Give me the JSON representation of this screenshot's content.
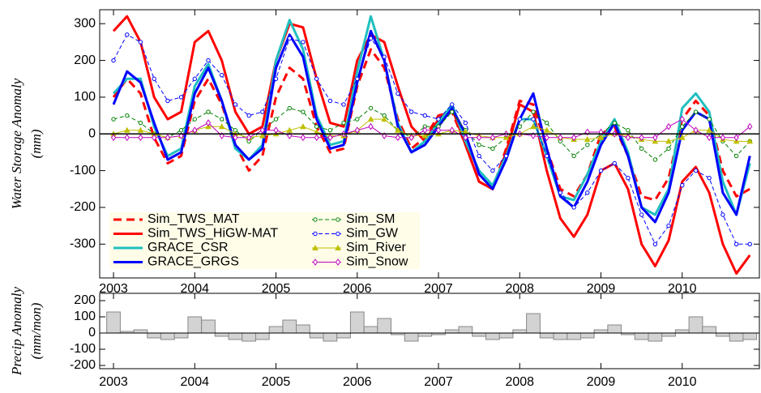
{
  "chart_data": [
    {
      "type": "line",
      "y_label": [
        "Water Storage Anomaly",
        "(mm)"
      ],
      "x": [
        2003,
        2003.167,
        2003.333,
        2003.5,
        2003.667,
        2003.833,
        2004,
        2004.167,
        2004.333,
        2004.5,
        2004.667,
        2004.833,
        2005,
        2005.167,
        2005.333,
        2005.5,
        2005.667,
        2005.833,
        2006,
        2006.167,
        2006.333,
        2006.5,
        2006.667,
        2006.833,
        2007,
        2007.167,
        2007.333,
        2007.5,
        2007.667,
        2007.833,
        2008,
        2008.167,
        2008.333,
        2008.5,
        2008.667,
        2008.833,
        2009,
        2009.167,
        2009.333,
        2009.5,
        2009.667,
        2009.833,
        2010,
        2010.167,
        2010.333,
        2010.5,
        2010.667,
        2010.833
      ],
      "xlim": [
        2002.83,
        2010.95
      ],
      "xticks": [
        2003,
        2004,
        2005,
        2006,
        2007,
        2008,
        2009,
        2010
      ],
      "ylim": [
        -392,
        338
      ],
      "yticks": [
        -300,
        -200,
        -100,
        0,
        100,
        200,
        300
      ],
      "hline": 0,
      "legend": "lower left",
      "series": [
        {
          "name": "Sim_TWS_MAT",
          "color": "#ff0000",
          "style": "dashed",
          "width": 3,
          "values": [
            100,
            150,
            110,
            -10,
            -80,
            -60,
            90,
            150,
            80,
            -30,
            -100,
            -60,
            100,
            180,
            150,
            20,
            -50,
            -40,
            130,
            230,
            180,
            40,
            -40,
            -10,
            50,
            60,
            -30,
            -130,
            -150,
            -40,
            90,
            80,
            -40,
            -150,
            -170,
            -110,
            0,
            20,
            -60,
            -170,
            -180,
            -120,
            40,
            90,
            50,
            -100,
            -170,
            -150
          ]
        },
        {
          "name": "Sim_TWS_HiGW-MAT",
          "color": "#ff0000",
          "style": "solid",
          "width": 3,
          "values": [
            280,
            320,
            250,
            100,
            40,
            60,
            250,
            280,
            200,
            60,
            0,
            20,
            200,
            300,
            290,
            150,
            30,
            20,
            200,
            270,
            250,
            130,
            20,
            -20,
            40,
            70,
            -30,
            -130,
            -150,
            -50,
            80,
            60,
            -100,
            -230,
            -280,
            -220,
            -100,
            -80,
            -150,
            -300,
            -360,
            -290,
            -130,
            -90,
            -160,
            -300,
            -380,
            -330
          ]
        },
        {
          "name": "GRACE_CSR",
          "color": "#1fbfbf",
          "style": "solid",
          "width": 3,
          "values": [
            110,
            150,
            150,
            20,
            -60,
            -40,
            130,
            190,
            90,
            -40,
            -70,
            -30,
            200,
            310,
            230,
            50,
            -30,
            -20,
            170,
            320,
            200,
            30,
            -50,
            -20,
            30,
            80,
            -20,
            -100,
            -140,
            -60,
            40,
            40,
            -60,
            -170,
            -180,
            -110,
            -20,
            40,
            -50,
            -200,
            -220,
            -150,
            70,
            110,
            60,
            -130,
            -220,
            -80
          ]
        },
        {
          "name": "GRACE_GRGS",
          "color": "#0000ff",
          "style": "solid",
          "width": 3,
          "values": [
            80,
            170,
            140,
            30,
            -70,
            -50,
            110,
            180,
            90,
            -30,
            -70,
            -40,
            180,
            270,
            210,
            40,
            -40,
            -30,
            140,
            280,
            200,
            20,
            -50,
            -30,
            20,
            70,
            0,
            -110,
            -150,
            -70,
            40,
            110,
            -40,
            -170,
            -200,
            -130,
            -30,
            30,
            -60,
            -200,
            -240,
            -160,
            10,
            60,
            40,
            -160,
            -220,
            -60
          ]
        },
        {
          "name": "Sim_SM",
          "color": "#008000",
          "style": "dashed",
          "marker": "o",
          "width": 1,
          "values": [
            40,
            50,
            30,
            0,
            -10,
            10,
            40,
            60,
            40,
            10,
            -20,
            10,
            40,
            70,
            60,
            20,
            10,
            30,
            40,
            70,
            50,
            10,
            -10,
            20,
            20,
            60,
            10,
            -30,
            -40,
            -10,
            20,
            60,
            30,
            -20,
            -60,
            -30,
            0,
            30,
            10,
            -40,
            -70,
            -40,
            20,
            60,
            40,
            -20,
            -60,
            -20
          ]
        },
        {
          "name": "Sim_GW",
          "color": "#0000ff",
          "style": "dashed",
          "marker": "o",
          "width": 1,
          "values": [
            200,
            270,
            250,
            150,
            90,
            100,
            150,
            200,
            160,
            80,
            50,
            60,
            150,
            260,
            250,
            150,
            90,
            80,
            150,
            260,
            210,
            110,
            60,
            50,
            40,
            80,
            30,
            -60,
            -100,
            -60,
            40,
            40,
            -60,
            -160,
            -200,
            -160,
            -100,
            -80,
            -120,
            -220,
            -300,
            -250,
            -140,
            -100,
            -120,
            -220,
            -300,
            -300
          ]
        },
        {
          "name": "Sim_River",
          "color": "#bfbf00",
          "style": "solid",
          "marker": "^",
          "width": 1,
          "values": [
            0,
            10,
            10,
            0,
            -10,
            -5,
            10,
            20,
            20,
            0,
            -10,
            -5,
            0,
            10,
            20,
            5,
            -5,
            -5,
            10,
            40,
            40,
            10,
            -5,
            -5,
            0,
            10,
            5,
            -5,
            -10,
            -10,
            0,
            20,
            10,
            -10,
            -15,
            -15,
            -10,
            0,
            -5,
            -15,
            -20,
            -20,
            -10,
            10,
            10,
            -15,
            -20,
            -20
          ]
        },
        {
          "name": "Sim_Snow",
          "color": "#bf00bf",
          "style": "solid",
          "marker": "d",
          "width": 1,
          "values": [
            -10,
            -10,
            -10,
            -10,
            -10,
            -5,
            10,
            30,
            -5,
            -10,
            -10,
            10,
            10,
            -5,
            -10,
            -10,
            -10,
            0,
            10,
            20,
            -5,
            -10,
            -10,
            10,
            10,
            10,
            -10,
            -10,
            -10,
            0,
            0,
            -5,
            -10,
            -10,
            -10,
            5,
            5,
            0,
            -10,
            -10,
            -10,
            20,
            40,
            10,
            -10,
            -10,
            -10,
            20
          ]
        }
      ]
    },
    {
      "type": "bar",
      "y_label": [
        "Precip Anomaly",
        "(mm/mon)"
      ],
      "color": "#d3d3d3",
      "x": [
        2003,
        2003.167,
        2003.333,
        2003.5,
        2003.667,
        2003.833,
        2004,
        2004.167,
        2004.333,
        2004.5,
        2004.667,
        2004.833,
        2005,
        2005.167,
        2005.333,
        2005.5,
        2005.667,
        2005.833,
        2006,
        2006.167,
        2006.333,
        2006.5,
        2006.667,
        2006.833,
        2007,
        2007.167,
        2007.333,
        2007.5,
        2007.667,
        2007.833,
        2008,
        2008.167,
        2008.333,
        2008.5,
        2008.667,
        2008.833,
        2009,
        2009.167,
        2009.333,
        2009.5,
        2009.667,
        2009.833,
        2010,
        2010.167,
        2010.333,
        2010.5,
        2010.667,
        2010.833
      ],
      "values": [
        130,
        10,
        20,
        -30,
        -40,
        -30,
        100,
        80,
        -20,
        -40,
        -50,
        -40,
        40,
        80,
        50,
        -30,
        -50,
        -30,
        130,
        40,
        90,
        -10,
        -50,
        -20,
        -10,
        20,
        40,
        -20,
        -40,
        -30,
        20,
        120,
        -30,
        -40,
        -40,
        -30,
        20,
        50,
        -10,
        -40,
        -50,
        -20,
        20,
        100,
        40,
        -20,
        -50,
        -40
      ],
      "xlim": [
        2002.83,
        2010.95
      ],
      "xticks": [
        2003,
        2004,
        2005,
        2006,
        2007,
        2008,
        2009,
        2010
      ],
      "ylim": [
        -220,
        245
      ],
      "yticks": [
        -200,
        -100,
        0,
        100,
        200
      ],
      "hline": 0
    }
  ]
}
